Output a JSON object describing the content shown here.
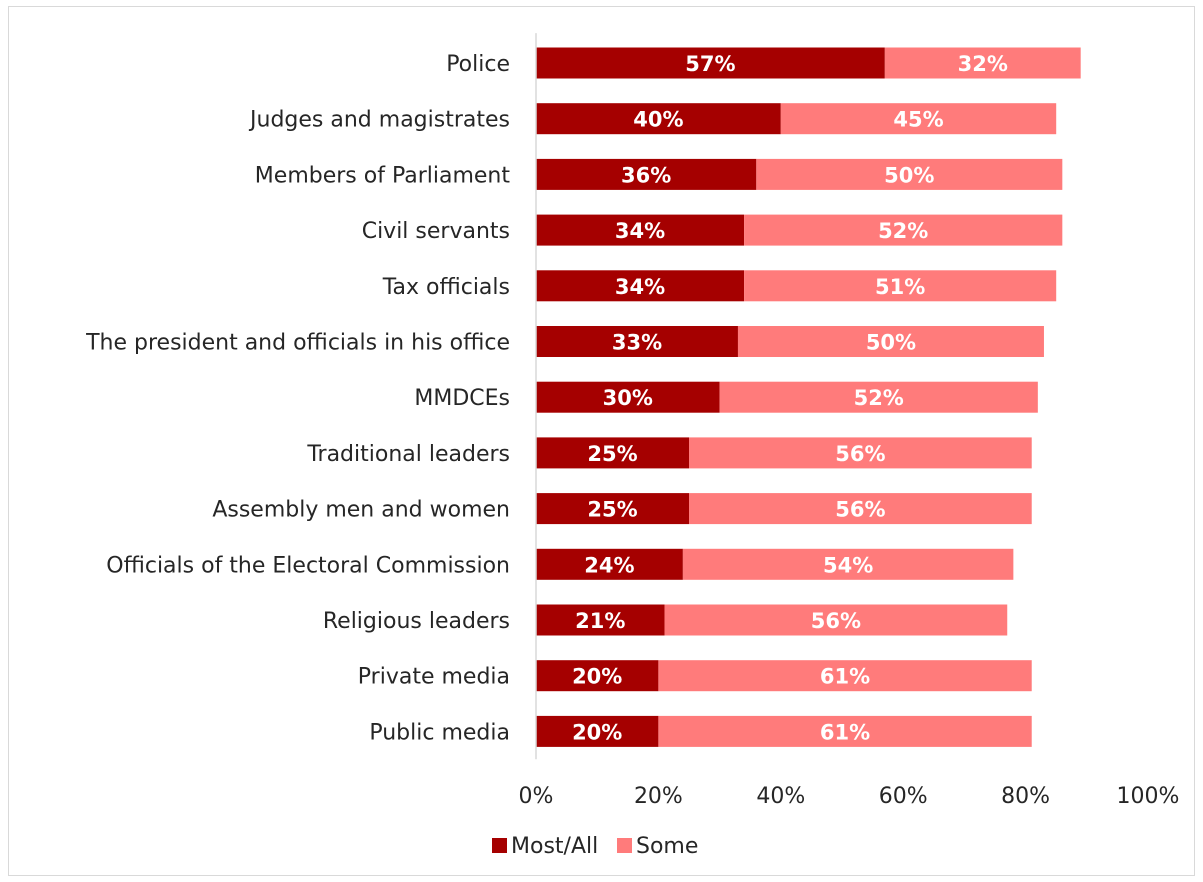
{
  "chart_data": {
    "type": "bar",
    "orientation": "horizontal",
    "stacked": true,
    "categories": [
      "Police",
      "Judges and magistrates",
      "Members of Parliament",
      "Civil servants",
      "Tax officials",
      "The president and officials in his office",
      "MMDCEs",
      "Traditional leaders",
      "Assembly men and women",
      "Officials of the Electoral Commission",
      "Religious leaders",
      "Private media",
      "Public media"
    ],
    "series": [
      {
        "name": "Most/All",
        "color": "#a50000",
        "values": [
          57,
          40,
          36,
          34,
          34,
          33,
          30,
          25,
          25,
          24,
          21,
          20,
          20
        ],
        "labels": [
          "57%",
          "40%",
          "36%",
          "34%",
          "34%",
          "33%",
          "30%",
          "25%",
          "25%",
          "24%",
          "21%",
          "20%",
          "20%"
        ]
      },
      {
        "name": "Some",
        "color": "#ff7b7b",
        "values": [
          32,
          45,
          50,
          52,
          51,
          50,
          52,
          56,
          56,
          54,
          56,
          61,
          61
        ],
        "labels": [
          "32%",
          "45%",
          "50%",
          "52%",
          "51%",
          "50%",
          "52%",
          "56%",
          "56%",
          "54%",
          "56%",
          "61%",
          "61%"
        ]
      }
    ],
    "xlim": [
      0,
      100
    ],
    "xticks": [
      "0%",
      "20%",
      "40%",
      "60%",
      "80%",
      "100%"
    ],
    "grid": false,
    "legend_position": "bottom"
  }
}
